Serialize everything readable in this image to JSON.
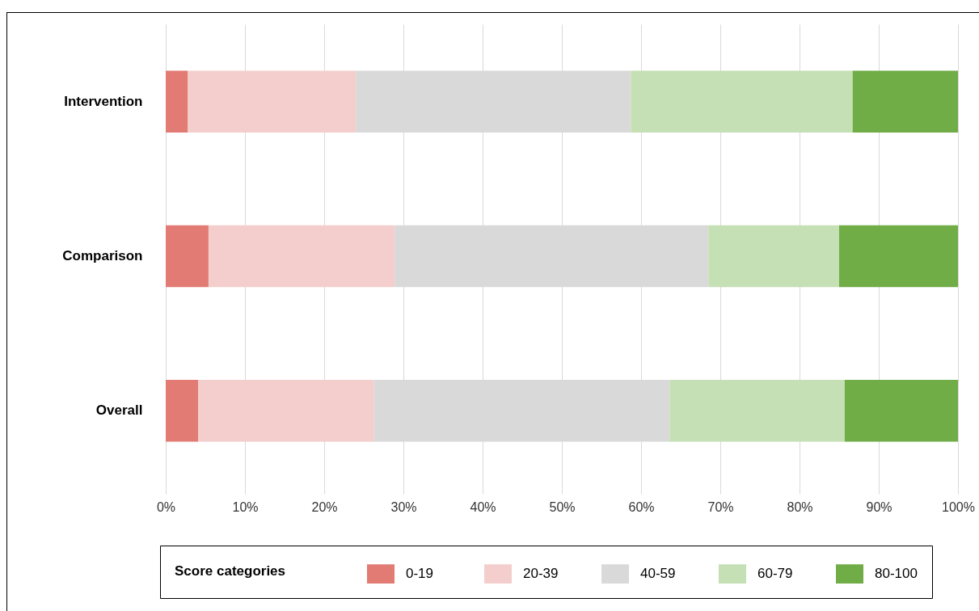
{
  "chart_data": {
    "type": "bar",
    "orientation": "horizontal",
    "stacked": true,
    "categories": [
      "Intervention",
      "Comparison",
      "Overall"
    ],
    "series": [
      {
        "name": "0-19",
        "color": "#e27b74",
        "values": [
          2.8,
          5.4,
          4.1
        ]
      },
      {
        "name": "20-39",
        "color": "#f4cecc",
        "values": [
          21.2,
          23.5,
          22.2
        ]
      },
      {
        "name": "40-59",
        "color": "#d9d9d9",
        "values": [
          34.7,
          39.6,
          37.3
        ]
      },
      {
        "name": "60-79",
        "color": "#c5e0b4",
        "values": [
          28.0,
          16.5,
          22.1
        ]
      },
      {
        "name": "80-100",
        "color": "#70ad47",
        "values": [
          13.3,
          15.0,
          14.3
        ]
      }
    ],
    "legend_title": "Score categories",
    "legend": "bottom",
    "xlim": [
      0,
      100
    ],
    "xticks": [
      {
        "value": 0,
        "label": "0%"
      },
      {
        "value": 10,
        "label": "10%"
      },
      {
        "value": 20,
        "label": "20%"
      },
      {
        "value": 30,
        "label": "30%"
      },
      {
        "value": 40,
        "label": "40%"
      },
      {
        "value": 50,
        "label": "50%"
      },
      {
        "value": 60,
        "label": "60%"
      },
      {
        "value": 70,
        "label": "70%"
      },
      {
        "value": 80,
        "label": "80%"
      },
      {
        "value": 90,
        "label": "90%"
      },
      {
        "value": 100,
        "label": "100%"
      }
    ],
    "grid": "x"
  }
}
